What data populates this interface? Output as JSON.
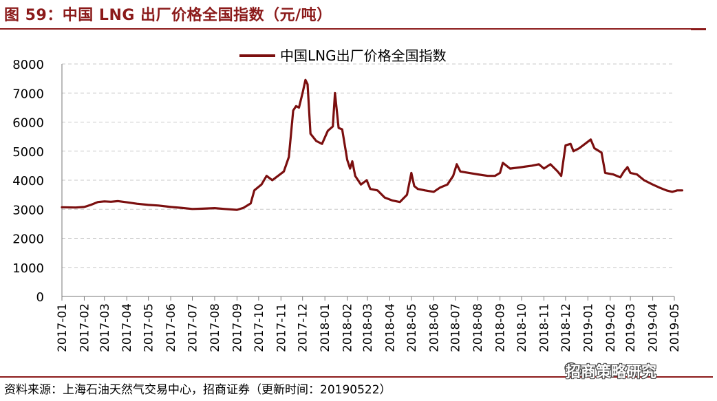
{
  "figure": {
    "title": "图 59：中国 LNG 出厂价格全国指数（元/吨）",
    "source": "资料来源：上海石油天然气交易中心，招商证券（更新时间：20190522）",
    "watermark": "招商策略研究",
    "watermark_icon": "wechat-icon",
    "accent_color": "#8b1a1a"
  },
  "chart_data": {
    "type": "line",
    "ylim": [
      0,
      8000
    ],
    "yticks": [
      "0",
      "1000",
      "2000",
      "3000",
      "4000",
      "5000",
      "6000",
      "7000",
      "8000"
    ],
    "categories": [
      "2017-01",
      "2017-02",
      "2017-03",
      "2017-04",
      "2017-05",
      "2017-06",
      "2017-07",
      "2017-08",
      "2017-09",
      "2017-10",
      "2017-11",
      "2017-12",
      "2018-01",
      "2018-02",
      "2018-03",
      "2018-04",
      "2018-05",
      "2018-06",
      "2018-07",
      "2018-08",
      "2018-09",
      "2018-10",
      "2018-11",
      "2018-12",
      "2019-01",
      "2019-02",
      "2019-03",
      "2019-04",
      "2019-05"
    ],
    "grid": true,
    "legend": "top-center",
    "series": [
      {
        "name": "中国LNG出厂价格全国指数",
        "color": "#7b0f0f",
        "points": [
          [
            "2017-01-01",
            3070
          ],
          [
            "2017-01-20",
            3060
          ],
          [
            "2017-02-01",
            3080
          ],
          [
            "2017-02-10",
            3150
          ],
          [
            "2017-02-20",
            3250
          ],
          [
            "2017-03-01",
            3270
          ],
          [
            "2017-03-10",
            3260
          ],
          [
            "2017-03-20",
            3280
          ],
          [
            "2017-04-01",
            3240
          ],
          [
            "2017-04-15",
            3190
          ],
          [
            "2017-05-01",
            3150
          ],
          [
            "2017-05-15",
            3130
          ],
          [
            "2017-06-01",
            3080
          ],
          [
            "2017-06-15",
            3050
          ],
          [
            "2017-07-01",
            3010
          ],
          [
            "2017-07-15",
            3020
          ],
          [
            "2017-08-01",
            3040
          ],
          [
            "2017-08-15",
            3010
          ],
          [
            "2017-09-01",
            2980
          ],
          [
            "2017-09-10",
            3050
          ],
          [
            "2017-09-20",
            3200
          ],
          [
            "2017-09-25",
            3650
          ],
          [
            "2017-10-05",
            3850
          ],
          [
            "2017-10-12",
            4150
          ],
          [
            "2017-10-20",
            4000
          ],
          [
            "2017-10-28",
            4150
          ],
          [
            "2017-11-05",
            4300
          ],
          [
            "2017-11-12",
            4800
          ],
          [
            "2017-11-18",
            6400
          ],
          [
            "2017-11-22",
            6550
          ],
          [
            "2017-11-26",
            6500
          ],
          [
            "2017-12-01",
            7000
          ],
          [
            "2017-12-05",
            7450
          ],
          [
            "2017-12-08",
            7300
          ],
          [
            "2017-12-12",
            5600
          ],
          [
            "2017-12-20",
            5350
          ],
          [
            "2017-12-28",
            5250
          ],
          [
            "2018-01-05",
            5700
          ],
          [
            "2018-01-12",
            5850
          ],
          [
            "2018-01-15",
            7000
          ],
          [
            "2018-01-20",
            5800
          ],
          [
            "2018-01-25",
            5750
          ],
          [
            "2018-02-01",
            4700
          ],
          [
            "2018-02-05",
            4400
          ],
          [
            "2018-02-08",
            4650
          ],
          [
            "2018-02-12",
            4150
          ],
          [
            "2018-02-20",
            3850
          ],
          [
            "2018-02-28",
            4000
          ],
          [
            "2018-03-05",
            3700
          ],
          [
            "2018-03-15",
            3650
          ],
          [
            "2018-03-25",
            3400
          ],
          [
            "2018-04-05",
            3300
          ],
          [
            "2018-04-15",
            3250
          ],
          [
            "2018-04-25",
            3500
          ],
          [
            "2018-05-01",
            4250
          ],
          [
            "2018-05-05",
            3800
          ],
          [
            "2018-05-10",
            3700
          ],
          [
            "2018-05-20",
            3650
          ],
          [
            "2018-06-01",
            3600
          ],
          [
            "2018-06-10",
            3750
          ],
          [
            "2018-06-20",
            3850
          ],
          [
            "2018-06-28",
            4150
          ],
          [
            "2018-07-03",
            4550
          ],
          [
            "2018-07-08",
            4300
          ],
          [
            "2018-07-20",
            4250
          ],
          [
            "2018-08-01",
            4200
          ],
          [
            "2018-08-15",
            4150
          ],
          [
            "2018-08-25",
            4150
          ],
          [
            "2018-09-01",
            4250
          ],
          [
            "2018-09-05",
            4600
          ],
          [
            "2018-09-15",
            4400
          ],
          [
            "2018-10-01",
            4450
          ],
          [
            "2018-10-15",
            4500
          ],
          [
            "2018-10-25",
            4550
          ],
          [
            "2018-11-01",
            4400
          ],
          [
            "2018-11-10",
            4550
          ],
          [
            "2018-11-20",
            4300
          ],
          [
            "2018-11-25",
            4150
          ],
          [
            "2018-12-01",
            5200
          ],
          [
            "2018-12-08",
            5250
          ],
          [
            "2018-12-12",
            5000
          ],
          [
            "2018-12-20",
            5100
          ],
          [
            "2018-12-28",
            5250
          ],
          [
            "2019-01-05",
            5400
          ],
          [
            "2019-01-10",
            5100
          ],
          [
            "2019-01-20",
            4950
          ],
          [
            "2019-01-25",
            4250
          ],
          [
            "2019-02-05",
            4200
          ],
          [
            "2019-02-15",
            4100
          ],
          [
            "2019-02-20",
            4300
          ],
          [
            "2019-02-25",
            4450
          ],
          [
            "2019-03-01",
            4250
          ],
          [
            "2019-03-10",
            4200
          ],
          [
            "2019-03-20",
            4000
          ],
          [
            "2019-04-01",
            3850
          ],
          [
            "2019-04-10",
            3750
          ],
          [
            "2019-04-20",
            3650
          ],
          [
            "2019-04-28",
            3600
          ],
          [
            "2019-05-05",
            3650
          ],
          [
            "2019-05-12",
            3650
          ]
        ]
      }
    ]
  }
}
